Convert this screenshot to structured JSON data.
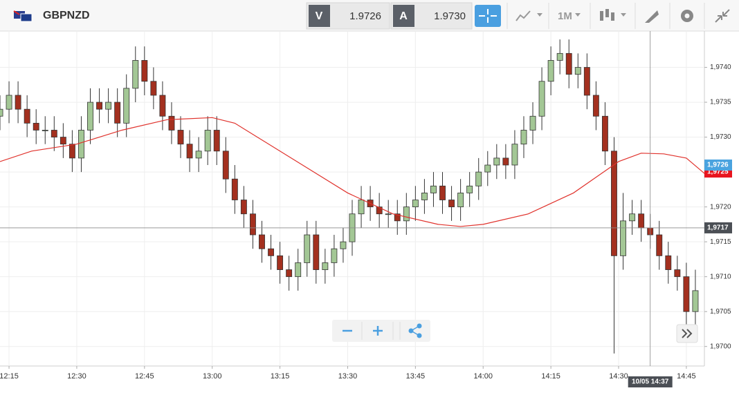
{
  "toolbar": {
    "symbol": "GBPNZD",
    "bid_label": "V",
    "bid": "1.9726",
    "ask_label": "A",
    "ask": "1.9730",
    "timeframe": "1M"
  },
  "chart_data": {
    "type": "candlestick",
    "x": [
      "12:13",
      "12:15",
      "12:17",
      "12:19",
      "12:21",
      "12:23",
      "12:25",
      "12:27",
      "12:29",
      "12:31",
      "12:33",
      "12:35",
      "12:37",
      "12:39",
      "12:41",
      "12:43",
      "12:45",
      "12:47",
      "12:49",
      "12:51",
      "12:53",
      "12:55",
      "12:57",
      "12:59",
      "13:01",
      "13:03",
      "13:05",
      "13:07",
      "13:09",
      "13:11",
      "13:13",
      "13:15",
      "13:17",
      "13:19",
      "13:21",
      "13:23",
      "13:25",
      "13:27",
      "13:29",
      "13:31",
      "13:33",
      "13:35",
      "13:37",
      "13:39",
      "13:41",
      "13:43",
      "13:45",
      "13:47",
      "13:49",
      "13:51",
      "13:53",
      "13:55",
      "13:57",
      "13:59",
      "14:01",
      "14:03",
      "14:05",
      "14:07",
      "14:09",
      "14:11",
      "14:13",
      "14:15",
      "14:17",
      "14:19",
      "14:21",
      "14:23",
      "14:25",
      "14:27",
      "14:29",
      "14:31",
      "14:33",
      "14:35",
      "14:37",
      "14:39",
      "14:41",
      "14:43",
      "14:45",
      "14:47"
    ],
    "open": [
      1.9733,
      1.9734,
      1.9736,
      1.9734,
      1.9732,
      1.9731,
      1.9731,
      1.973,
      1.9729,
      1.9727,
      1.9731,
      1.9735,
      1.9734,
      1.9735,
      1.9732,
      1.9737,
      1.9741,
      1.9738,
      1.9736,
      1.9733,
      1.9731,
      1.9729,
      1.9727,
      1.9728,
      1.9731,
      1.9728,
      1.9724,
      1.9721,
      1.9719,
      1.9716,
      1.9714,
      1.9713,
      1.9711,
      1.971,
      1.9712,
      1.9716,
      1.9711,
      1.9712,
      1.9714,
      1.9715,
      1.9719,
      1.9721,
      1.972,
      1.9719,
      1.9719,
      1.9718,
      1.972,
      1.9721,
      1.9722,
      1.9723,
      1.9721,
      1.972,
      1.9722,
      1.9723,
      1.9725,
      1.9726,
      1.9727,
      1.9726,
      1.9729,
      1.9731,
      1.9733,
      1.9738,
      1.9741,
      1.9742,
      1.9739,
      1.974,
      1.9736,
      1.9733,
      1.9728,
      1.9713,
      1.9718,
      1.9719,
      1.9717,
      1.9716,
      1.9713,
      1.9711,
      1.971,
      1.9705
    ],
    "high": [
      1.9736,
      1.9738,
      1.9738,
      1.9736,
      1.9734,
      1.9733,
      1.9733,
      1.9732,
      1.9731,
      1.9733,
      1.9737,
      1.9737,
      1.9737,
      1.9737,
      1.9739,
      1.9743,
      1.9743,
      1.974,
      1.9738,
      1.9735,
      1.9733,
      1.9731,
      1.973,
      1.9733,
      1.9733,
      1.973,
      1.9726,
      1.9723,
      1.9721,
      1.9718,
      1.9716,
      1.9715,
      1.9713,
      1.9714,
      1.9718,
      1.9718,
      1.9714,
      1.9716,
      1.9717,
      1.9721,
      1.9723,
      1.9723,
      1.9722,
      1.9721,
      1.9721,
      1.9722,
      1.9723,
      1.9724,
      1.9725,
      1.9725,
      1.9723,
      1.9724,
      1.9725,
      1.9727,
      1.9728,
      1.9729,
      1.9729,
      1.9731,
      1.9733,
      1.9735,
      1.974,
      1.9743,
      1.9744,
      1.9744,
      1.9742,
      1.9742,
      1.9738,
      1.9735,
      1.973,
      1.9722,
      1.9721,
      1.9721,
      1.9719,
      1.9718,
      1.9715,
      1.9713,
      1.9712,
      1.9711
    ],
    "low": [
      1.9731,
      1.9732,
      1.9732,
      1.973,
      1.9729,
      1.9729,
      1.9728,
      1.9727,
      1.9725,
      1.9725,
      1.9729,
      1.9732,
      1.9732,
      1.973,
      1.973,
      1.9735,
      1.9736,
      1.9734,
      1.9731,
      1.9729,
      1.9727,
      1.9725,
      1.9725,
      1.9726,
      1.9726,
      1.9722,
      1.9719,
      1.9717,
      1.9714,
      1.9712,
      1.9711,
      1.9709,
      1.9708,
      1.9708,
      1.971,
      1.9709,
      1.9709,
      1.971,
      1.9712,
      1.9713,
      1.9717,
      1.9718,
      1.9717,
      1.9717,
      1.9716,
      1.9716,
      1.9718,
      1.9719,
      1.972,
      1.9719,
      1.9718,
      1.9718,
      1.972,
      1.9721,
      1.9723,
      1.9724,
      1.9724,
      1.9724,
      1.9727,
      1.9729,
      1.9731,
      1.9736,
      1.9739,
      1.9737,
      1.9737,
      1.9734,
      1.9731,
      1.9726,
      1.9699,
      1.9711,
      1.9716,
      1.9715,
      1.9714,
      1.9711,
      1.9709,
      1.9708,
      1.9703,
      1.9703
    ],
    "close": [
      1.9734,
      1.9736,
      1.9734,
      1.9732,
      1.9731,
      1.9731,
      1.973,
      1.9729,
      1.9727,
      1.9731,
      1.9735,
      1.9734,
      1.9735,
      1.9732,
      1.9737,
      1.9741,
      1.9738,
      1.9736,
      1.9733,
      1.9731,
      1.9729,
      1.9727,
      1.9728,
      1.9731,
      1.9728,
      1.9724,
      1.9721,
      1.9719,
      1.9716,
      1.9714,
      1.9713,
      1.9711,
      1.971,
      1.9712,
      1.9716,
      1.9711,
      1.9712,
      1.9714,
      1.9715,
      1.9719,
      1.9721,
      1.972,
      1.9719,
      1.9719,
      1.9718,
      1.972,
      1.9721,
      1.9722,
      1.9723,
      1.9721,
      1.972,
      1.9722,
      1.9723,
      1.9725,
      1.9726,
      1.9727,
      1.9726,
      1.9729,
      1.9731,
      1.9733,
      1.9738,
      1.9741,
      1.9742,
      1.9739,
      1.974,
      1.9736,
      1.9733,
      1.9728,
      1.9713,
      1.9718,
      1.9719,
      1.9717,
      1.9716,
      1.9713,
      1.9711,
      1.971,
      1.9705,
      1.9708
    ],
    "up_color": "#a3c795",
    "down_color": "#a3301f",
    "moving_average": {
      "color": "#e0312b",
      "x": [
        "12:13",
        "12:20",
        "12:30",
        "12:40",
        "12:50",
        "13:00",
        "13:05",
        "13:10",
        "13:20",
        "13:30",
        "13:40",
        "13:50",
        "13:55",
        "14:00",
        "14:10",
        "14:20",
        "14:30",
        "14:35",
        "14:40",
        "14:45",
        "14:49"
      ],
      "values": [
        1.97265,
        1.9728,
        1.9729,
        1.9731,
        1.97325,
        1.97328,
        1.9732,
        1.973,
        1.9726,
        1.9722,
        1.9719,
        1.97175,
        1.97172,
        1.97175,
        1.9719,
        1.9722,
        1.97265,
        1.97277,
        1.97276,
        1.9727,
        1.97248
      ]
    },
    "xlim": [
      "12:13",
      "14:49"
    ],
    "xticks": [
      "12:15",
      "12:30",
      "12:45",
      "13:00",
      "13:15",
      "13:30",
      "13:45",
      "14:00",
      "14:15",
      "14:30",
      "14:45"
    ],
    "ylim": [
      1.96972,
      1.97452
    ],
    "yticks": [
      {
        "value": 1.97,
        "label": "1,9700"
      },
      {
        "value": 1.9705,
        "label": "1,9705"
      },
      {
        "value": 1.971,
        "label": "1,9710"
      },
      {
        "value": 1.9715,
        "label": "1,9715"
      },
      {
        "value": 1.972,
        "label": "1,9720"
      },
      {
        "value": 1.9725,
        "label": "1,9725"
      },
      {
        "value": 1.973,
        "label": "1,9730"
      },
      {
        "value": 1.9735,
        "label": "1,9735"
      },
      {
        "value": 1.974,
        "label": "1,9740"
      }
    ],
    "grid": true,
    "price_markers": [
      {
        "value": 1.9725,
        "label": "1,9725",
        "color": "#e8141e"
      },
      {
        "value": 1.9726,
        "label": "1,9726",
        "color": "#4aa3df"
      }
    ],
    "crosshair": {
      "y": {
        "value": 1.9717,
        "label": "1,9717"
      },
      "x": {
        "value": "14:37",
        "label": "10/05 14:37"
      }
    }
  }
}
